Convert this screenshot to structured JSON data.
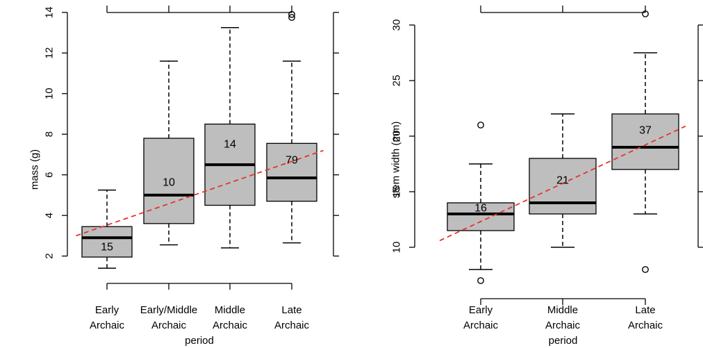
{
  "chart_data": [
    {
      "type": "box",
      "title": "",
      "xlabel": "period",
      "ylabel": "mass (g)",
      "ylim": [
        1.2,
        14.2
      ],
      "yticks": [
        2,
        4,
        6,
        8,
        10,
        12,
        14
      ],
      "categories": [
        [
          "Early",
          "Archaic"
        ],
        [
          "Early/Middle",
          "Archaic"
        ],
        [
          "Middle",
          "Archaic"
        ],
        [
          "Late",
          "Archaic"
        ]
      ],
      "boxes": [
        {
          "whisker_low": 1.4,
          "q1": 1.95,
          "median": 2.9,
          "q3": 3.45,
          "whisker_high": 5.25,
          "n": "15",
          "outliers": []
        },
        {
          "whisker_low": 2.55,
          "q1": 3.6,
          "median": 5.0,
          "q3": 7.8,
          "whisker_high": 11.6,
          "n": "10",
          "outliers": []
        },
        {
          "whisker_low": 2.4,
          "q1": 4.5,
          "median": 6.5,
          "q3": 8.5,
          "whisker_high": 13.25,
          "n": "14",
          "outliers": []
        },
        {
          "whisker_low": 2.65,
          "q1": 4.7,
          "median": 5.85,
          "q3": 7.55,
          "whisker_high": 11.6,
          "n": "79",
          "outliers": [
            13.75,
            13.9
          ]
        }
      ],
      "trend_line": {
        "color": "#e8312f",
        "style": "dashed",
        "y_at_x0_5": 3.0,
        "y_at_x4_5": 7.2
      }
    },
    {
      "type": "box",
      "title": "",
      "xlabel": "period",
      "ylabel": "stem width (mm)",
      "ylim": [
        6.5,
        31.5
      ],
      "yticks": [
        10,
        15,
        20,
        25,
        30
      ],
      "categories": [
        [
          "Early",
          "Archaic"
        ],
        [
          "Middle",
          "Archaic"
        ],
        [
          "Late",
          "Archaic"
        ]
      ],
      "boxes": [
        {
          "whisker_low": 8.0,
          "q1": 11.5,
          "median": 13.0,
          "q3": 14.0,
          "whisker_high": 17.5,
          "n": "16",
          "outliers": [
            21.0,
            7.0
          ]
        },
        {
          "whisker_low": 10.0,
          "q1": 13.0,
          "median": 14.0,
          "q3": 18.0,
          "whisker_high": 22.0,
          "n": "21",
          "outliers": []
        },
        {
          "whisker_low": 13.0,
          "q1": 17.0,
          "median": 19.0,
          "q3": 22.0,
          "whisker_high": 27.5,
          "n": "37",
          "outliers": [
            31.0,
            8.0
          ]
        }
      ],
      "trend_line": {
        "color": "#e8312f",
        "style": "dashed",
        "y_at_x0_5": 10.6,
        "y_at_x3_5": 20.9
      }
    }
  ],
  "colors": {
    "box_fill": "#bebebe",
    "stroke": "#000000",
    "trend": "#e8312f"
  }
}
